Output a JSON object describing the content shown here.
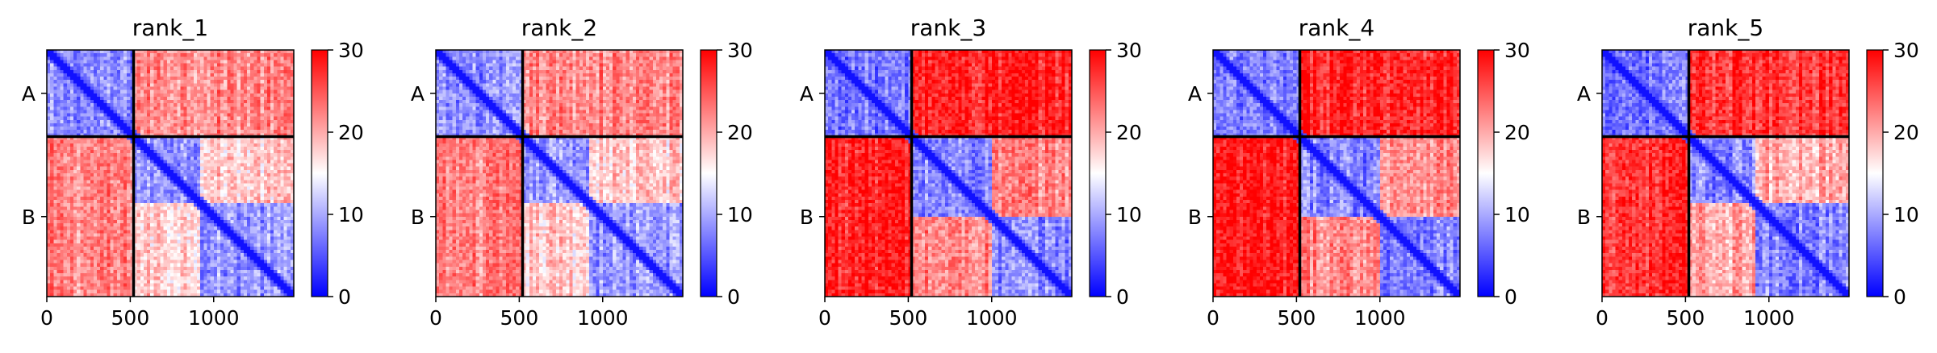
{
  "chart_data": {
    "type": "heatmap",
    "subtype": "predicted-aligned-error-matrix",
    "colormap": "bwr",
    "colormap_colors": [
      "#0000ff",
      "#ffffff",
      "#ff0000"
    ],
    "divider_color": "#000000",
    "panels": [
      {
        "title": "rank_1",
        "intra_A": 8,
        "inter": 22,
        "intra_B": 9,
        "B_offdiag": 18,
        "inner_div": 930
      },
      {
        "title": "rank_2",
        "intra_A": 8,
        "inter": 22,
        "intra_B": 9,
        "B_offdiag": 18,
        "inner_div": 930
      },
      {
        "title": "rank_3",
        "intra_A": 7,
        "inter": 28,
        "intra_B": 8,
        "B_offdiag": 22,
        "inner_div": 1000
      },
      {
        "title": "rank_4",
        "intra_A": 7,
        "inter": 28,
        "intra_B": 8,
        "B_offdiag": 22,
        "inner_div": 1000
      },
      {
        "title": "rank_5",
        "intra_A": 7,
        "inter": 27,
        "intra_B": 8,
        "B_offdiag": 20,
        "inner_div": 920
      }
    ],
    "chains": [
      "A",
      "B"
    ],
    "chain_boundary": 520,
    "n_residues": 1480,
    "xticks": [
      0,
      500,
      1000
    ],
    "xtick_labels": [
      "0",
      "500",
      "1000"
    ],
    "colorbar": {
      "min": 0,
      "max": 30,
      "ticks": [
        0,
        10,
        20,
        30
      ],
      "tick_labels": [
        "0",
        "10",
        "20",
        "30"
      ]
    },
    "xlim": [
      0,
      1480
    ],
    "ylim": [
      1480,
      0
    ]
  }
}
